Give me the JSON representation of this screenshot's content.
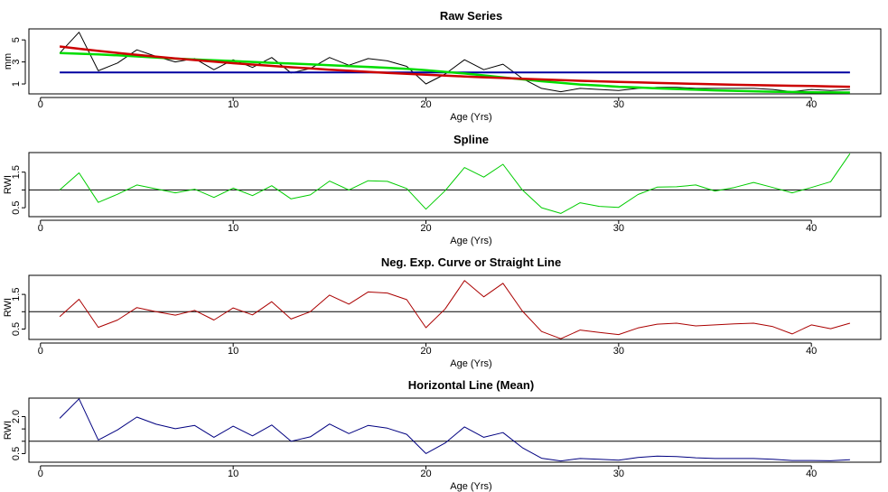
{
  "chart_data": [
    {
      "type": "line",
      "title": "Raw Series",
      "xlabel": "Age (Yrs)",
      "ylabel": "mm",
      "xlim": [
        -0.6,
        43.6
      ],
      "ylim": [
        0.1,
        6.0
      ],
      "xticks": [
        0,
        10,
        20,
        30,
        40
      ],
      "yticks": [
        1,
        3,
        5
      ],
      "x": [
        1,
        2,
        3,
        4,
        5,
        6,
        7,
        8,
        9,
        10,
        11,
        12,
        13,
        14,
        15,
        16,
        17,
        18,
        19,
        20,
        21,
        22,
        23,
        24,
        25,
        26,
        27,
        28,
        29,
        30,
        31,
        32,
        33,
        34,
        35,
        36,
        37,
        38,
        39,
        40,
        41,
        42
      ],
      "series": [
        {
          "color": "#000000",
          "width": 1,
          "values": [
            3.8,
            5.7,
            2.2,
            2.9,
            4.1,
            3.5,
            3.0,
            3.3,
            2.3,
            3.2,
            2.5,
            3.4,
            2.0,
            2.4,
            3.4,
            2.7,
            3.3,
            3.1,
            2.6,
            1.0,
            1.9,
            3.2,
            2.3,
            2.8,
            1.5,
            0.6,
            0.3,
            0.6,
            0.5,
            0.4,
            0.6,
            0.7,
            0.7,
            0.6,
            0.6,
            0.6,
            0.6,
            0.5,
            0.3,
            0.5,
            0.4,
            0.5
          ]
        },
        {
          "color": "#0000a0",
          "width": 2,
          "values": [
            2.05,
            2.05,
            2.05,
            2.05,
            2.05,
            2.05,
            2.05,
            2.05,
            2.05,
            2.05,
            2.05,
            2.05,
            2.05,
            2.05,
            2.05,
            2.05,
            2.05,
            2.05,
            2.05,
            2.05,
            2.05,
            2.05,
            2.05,
            2.05,
            2.05,
            2.05,
            2.05,
            2.05,
            2.05,
            2.05,
            2.05,
            2.05,
            2.05,
            2.05,
            2.05,
            2.05,
            2.05,
            2.05,
            2.05,
            2.05,
            2.05,
            2.05
          ]
        },
        {
          "color": "#00dd00",
          "width": 2.5,
          "values": [
            3.8,
            3.75,
            3.68,
            3.6,
            3.5,
            3.4,
            3.3,
            3.22,
            3.15,
            3.08,
            3.0,
            2.92,
            2.85,
            2.78,
            2.7,
            2.62,
            2.55,
            2.47,
            2.38,
            2.25,
            2.1,
            1.95,
            1.78,
            1.6,
            1.42,
            1.25,
            1.1,
            0.95,
            0.85,
            0.75,
            0.68,
            0.6,
            0.54,
            0.48,
            0.42,
            0.38,
            0.34,
            0.3,
            0.27,
            0.25,
            0.23,
            0.22
          ]
        },
        {
          "color": "#cc0000",
          "width": 2.5,
          "values": [
            4.4,
            4.2,
            4.0,
            3.82,
            3.65,
            3.48,
            3.32,
            3.17,
            3.03,
            2.89,
            2.76,
            2.64,
            2.52,
            2.41,
            2.3,
            2.2,
            2.1,
            2.01,
            1.92,
            1.84,
            1.76,
            1.68,
            1.61,
            1.54,
            1.47,
            1.41,
            1.35,
            1.29,
            1.24,
            1.19,
            1.14,
            1.09,
            1.05,
            1.01,
            0.97,
            0.93,
            0.9,
            0.87,
            0.84,
            0.81,
            0.78,
            0.75
          ]
        }
      ]
    },
    {
      "type": "line",
      "title": "Spline",
      "xlabel": "Age (Yrs)",
      "ylabel": "RWI",
      "xlim": [
        -0.6,
        43.6
      ],
      "ylim": [
        0.25,
        2.05
      ],
      "xticks": [
        0,
        10,
        20,
        30,
        40
      ],
      "yticks": [
        0.5,
        1.0,
        1.5
      ],
      "yticklabels": [
        "0.5",
        "",
        "1.5"
      ],
      "hline": 1.0,
      "x": [
        1,
        2,
        3,
        4,
        5,
        6,
        7,
        8,
        9,
        10,
        11,
        12,
        13,
        14,
        15,
        16,
        17,
        18,
        19,
        20,
        21,
        22,
        23,
        24,
        25,
        26,
        27,
        28,
        29,
        30,
        31,
        32,
        33,
        34,
        35,
        36,
        37,
        38,
        39,
        40,
        41,
        42
      ],
      "series": [
        {
          "color": "#00cc00",
          "width": 1,
          "values": [
            1.0,
            1.48,
            0.65,
            0.88,
            1.14,
            1.03,
            0.92,
            1.02,
            0.79,
            1.05,
            0.84,
            1.12,
            0.75,
            0.86,
            1.25,
            1.0,
            1.26,
            1.24,
            1.04,
            0.46,
            0.98,
            1.63,
            1.36,
            1.72,
            1.0,
            0.5,
            0.34,
            0.64,
            0.54,
            0.51,
            0.87,
            1.08,
            1.09,
            1.14,
            0.97,
            1.07,
            1.21,
            1.07,
            0.92,
            1.07,
            1.23,
            2.02
          ]
        }
      ]
    },
    {
      "type": "line",
      "title": "Neg. Exp. Curve or Straight Line",
      "xlabel": "Age (Yrs)",
      "ylabel": "RWI",
      "xlim": [
        -0.6,
        43.6
      ],
      "ylim": [
        0.2,
        2.05
      ],
      "xticks": [
        0,
        10,
        20,
        30,
        40
      ],
      "yticks": [
        0.5,
        1.0,
        1.5
      ],
      "yticklabels": [
        "0.5",
        "",
        "1.5"
      ],
      "hline": 1.0,
      "x": [
        1,
        2,
        3,
        4,
        5,
        6,
        7,
        8,
        9,
        10,
        11,
        12,
        13,
        14,
        15,
        16,
        17,
        18,
        19,
        20,
        21,
        22,
        23,
        24,
        25,
        26,
        27,
        28,
        29,
        30,
        31,
        32,
        33,
        34,
        35,
        36,
        37,
        38,
        39,
        40,
        41,
        42
      ],
      "series": [
        {
          "color": "#aa0000",
          "width": 1,
          "values": [
            0.86,
            1.36,
            0.55,
            0.76,
            1.12,
            1.0,
            0.9,
            1.04,
            0.76,
            1.11,
            0.91,
            1.29,
            0.79,
            1.0,
            1.48,
            1.22,
            1.57,
            1.54,
            1.35,
            0.54,
            1.08,
            1.9,
            1.43,
            1.82,
            1.02,
            0.43,
            0.22,
            0.47,
            0.4,
            0.34,
            0.53,
            0.64,
            0.67,
            0.59,
            0.62,
            0.65,
            0.67,
            0.57,
            0.36,
            0.62,
            0.51,
            0.67
          ]
        }
      ]
    },
    {
      "type": "line",
      "title": "Horizontal Line (Mean)",
      "xlabel": "Age (Yrs)",
      "ylabel": "RWI",
      "xlim": [
        -0.6,
        43.6
      ],
      "ylim": [
        0.15,
        2.75
      ],
      "xticks": [
        0,
        10,
        20,
        30,
        40
      ],
      "yticks": [
        0.5,
        1.0,
        1.5,
        2.0
      ],
      "yticklabels": [
        "0.5",
        "",
        "",
        "2.0"
      ],
      "hline": 1.0,
      "x": [
        1,
        2,
        3,
        4,
        5,
        6,
        7,
        8,
        9,
        10,
        11,
        12,
        13,
        14,
        15,
        16,
        17,
        18,
        19,
        20,
        21,
        22,
        23,
        24,
        25,
        26,
        27,
        28,
        29,
        30,
        31,
        32,
        33,
        34,
        35,
        36,
        37,
        38,
        39,
        40,
        41,
        42
      ],
      "series": [
        {
          "color": "#000080",
          "width": 1,
          "values": [
            1.93,
            2.72,
            1.05,
            1.46,
            1.98,
            1.69,
            1.51,
            1.64,
            1.16,
            1.61,
            1.22,
            1.66,
            1.0,
            1.18,
            1.7,
            1.31,
            1.64,
            1.53,
            1.28,
            0.5,
            0.93,
            1.58,
            1.16,
            1.35,
            0.74,
            0.31,
            0.2,
            0.3,
            0.27,
            0.23,
            0.34,
            0.4,
            0.38,
            0.33,
            0.3,
            0.3,
            0.3,
            0.27,
            0.22,
            0.22,
            0.21,
            0.25
          ]
        }
      ]
    }
  ]
}
